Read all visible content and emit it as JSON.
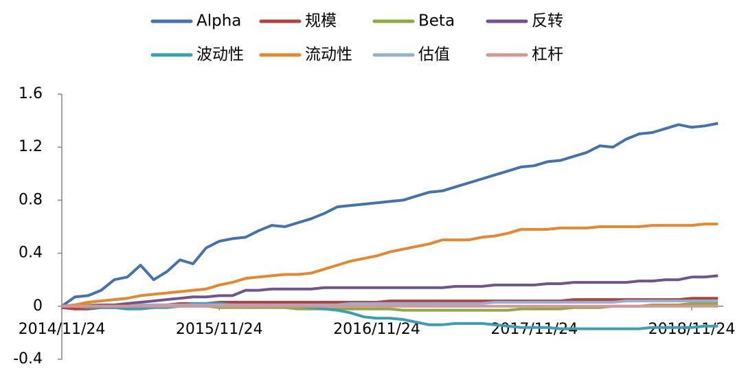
{
  "chart_data": {
    "type": "line",
    "categories": [
      "2014/11/24",
      null,
      null,
      null,
      null,
      null,
      null,
      null,
      null,
      null,
      null,
      null,
      "2015/11/24",
      null,
      null,
      null,
      null,
      null,
      null,
      null,
      null,
      null,
      null,
      null,
      "2016/11/24",
      null,
      null,
      null,
      null,
      null,
      null,
      null,
      null,
      null,
      null,
      null,
      "2017/11/24",
      null,
      null,
      null,
      null,
      null,
      null,
      null,
      null,
      null,
      null,
      null,
      "2018/11/24",
      null,
      null
    ],
    "ylim": [
      -0.4,
      1.6
    ],
    "yticks": [
      -0.4,
      0,
      0.4,
      0.8,
      1.2,
      1.6
    ],
    "series": [
      {
        "name": "Alpha",
        "color": "#4472b0",
        "values": [
          0,
          0.07,
          0.08,
          0.12,
          0.2,
          0.22,
          0.31,
          0.2,
          0.26,
          0.35,
          0.32,
          0.44,
          0.49,
          0.51,
          0.52,
          0.57,
          0.61,
          0.6,
          0.63,
          0.66,
          0.7,
          0.75,
          0.76,
          0.77,
          0.78,
          0.79,
          0.8,
          0.83,
          0.86,
          0.87,
          0.9,
          0.93,
          0.96,
          0.99,
          1.02,
          1.05,
          1.06,
          1.09,
          1.1,
          1.13,
          1.16,
          1.21,
          1.2,
          1.26,
          1.3,
          1.31,
          1.34,
          1.37,
          1.35,
          1.36,
          1.38
        ]
      },
      {
        "name": "规模",
        "color": "#b5413e",
        "values": [
          -0.01,
          -0.02,
          -0.02,
          -0.01,
          -0.01,
          0,
          0,
          0.01,
          0.01,
          0.02,
          0.02,
          0.02,
          0.03,
          0.03,
          0.03,
          0.03,
          0.03,
          0.03,
          0.03,
          0.03,
          0.03,
          0.03,
          0.03,
          0.03,
          0.03,
          0.04,
          0.04,
          0.04,
          0.04,
          0.04,
          0.04,
          0.04,
          0.04,
          0.04,
          0.04,
          0.04,
          0.04,
          0.04,
          0.04,
          0.05,
          0.05,
          0.05,
          0.05,
          0.05,
          0.05,
          0.05,
          0.05,
          0.05,
          0.06,
          0.06,
          0.06
        ]
      },
      {
        "name": "Beta",
        "color": "#8bab48",
        "values": [
          0,
          0,
          0.01,
          0.01,
          0,
          0,
          0,
          0,
          0,
          0,
          0,
          0,
          -0.01,
          -0.01,
          -0.01,
          -0.01,
          -0.01,
          -0.01,
          -0.02,
          -0.02,
          -0.02,
          -0.02,
          -0.02,
          -0.02,
          -0.02,
          -0.02,
          -0.03,
          -0.03,
          -0.03,
          -0.03,
          -0.03,
          -0.03,
          -0.03,
          -0.03,
          -0.03,
          -0.02,
          -0.02,
          -0.02,
          -0.02,
          -0.01,
          -0.01,
          -0.01,
          0,
          0,
          0,
          0.01,
          0.01,
          0.01,
          0.02,
          0.02,
          0.02
        ]
      },
      {
        "name": "反转",
        "color": "#70548f",
        "values": [
          0,
          0,
          0,
          0.01,
          0.01,
          0.02,
          0.03,
          0.04,
          0.05,
          0.06,
          0.07,
          0.07,
          0.08,
          0.08,
          0.12,
          0.12,
          0.13,
          0.13,
          0.13,
          0.13,
          0.14,
          0.14,
          0.14,
          0.14,
          0.14,
          0.14,
          0.14,
          0.14,
          0.14,
          0.14,
          0.15,
          0.15,
          0.15,
          0.16,
          0.16,
          0.16,
          0.16,
          0.17,
          0.17,
          0.18,
          0.18,
          0.18,
          0.18,
          0.18,
          0.19,
          0.19,
          0.2,
          0.2,
          0.22,
          0.22,
          0.23
        ]
      },
      {
        "name": "波动性",
        "color": "#3a9eb5",
        "values": [
          0,
          0,
          -0.01,
          -0.01,
          -0.01,
          -0.02,
          -0.02,
          -0.01,
          -0.01,
          0,
          0.02,
          0.02,
          0.02,
          0.01,
          0.01,
          0.01,
          0,
          0,
          0,
          -0.01,
          -0.02,
          -0.03,
          -0.05,
          -0.08,
          -0.09,
          -0.09,
          -0.1,
          -0.12,
          -0.14,
          -0.14,
          -0.13,
          -0.13,
          -0.13,
          -0.14,
          -0.15,
          -0.16,
          -0.16,
          -0.16,
          -0.17,
          -0.17,
          -0.17,
          -0.17,
          -0.17,
          -0.17,
          -0.17,
          -0.16,
          -0.16,
          -0.16,
          -0.16,
          -0.15,
          -0.15
        ]
      },
      {
        "name": "流动性",
        "color": "#e6862d",
        "values": [
          0,
          0.01,
          0.03,
          0.04,
          0.05,
          0.06,
          0.08,
          0.09,
          0.1,
          0.11,
          0.12,
          0.13,
          0.16,
          0.18,
          0.21,
          0.22,
          0.23,
          0.24,
          0.24,
          0.25,
          0.28,
          0.31,
          0.34,
          0.36,
          0.38,
          0.41,
          0.43,
          0.45,
          0.47,
          0.5,
          0.5,
          0.5,
          0.52,
          0.53,
          0.55,
          0.58,
          0.58,
          0.58,
          0.59,
          0.59,
          0.59,
          0.6,
          0.6,
          0.6,
          0.6,
          0.61,
          0.61,
          0.61,
          0.61,
          0.62,
          0.62
        ]
      },
      {
        "name": "估值",
        "color": "#95aed6",
        "values": [
          0,
          0,
          0,
          0,
          0,
          0,
          0.01,
          0.01,
          0.01,
          0.01,
          0.01,
          0.01,
          0.01,
          0.01,
          0.01,
          0.01,
          0.01,
          0.01,
          0.01,
          0.01,
          0.01,
          0.01,
          0.02,
          0.02,
          0.02,
          0.02,
          0.02,
          0.02,
          0.02,
          0.02,
          0.02,
          0.02,
          0.02,
          0.03,
          0.03,
          0.03,
          0.03,
          0.03,
          0.03,
          0.03,
          0.03,
          0.03,
          0.03,
          0.04,
          0.04,
          0.04,
          0.04,
          0.04,
          0.04,
          0.04,
          0.04
        ]
      },
      {
        "name": "杠杆",
        "color": "#d99594",
        "values": [
          0,
          0,
          0,
          0,
          0,
          0,
          0,
          0,
          0,
          0,
          0,
          0,
          0,
          0,
          0,
          0,
          0,
          0,
          0,
          0,
          0,
          0,
          0,
          0,
          0,
          0,
          0,
          0,
          0,
          0,
          0,
          0,
          0,
          0,
          0,
          0,
          0,
          0,
          0,
          0,
          0,
          0,
          0,
          0,
          0,
          0,
          0,
          0,
          0,
          0,
          0
        ]
      }
    ]
  }
}
